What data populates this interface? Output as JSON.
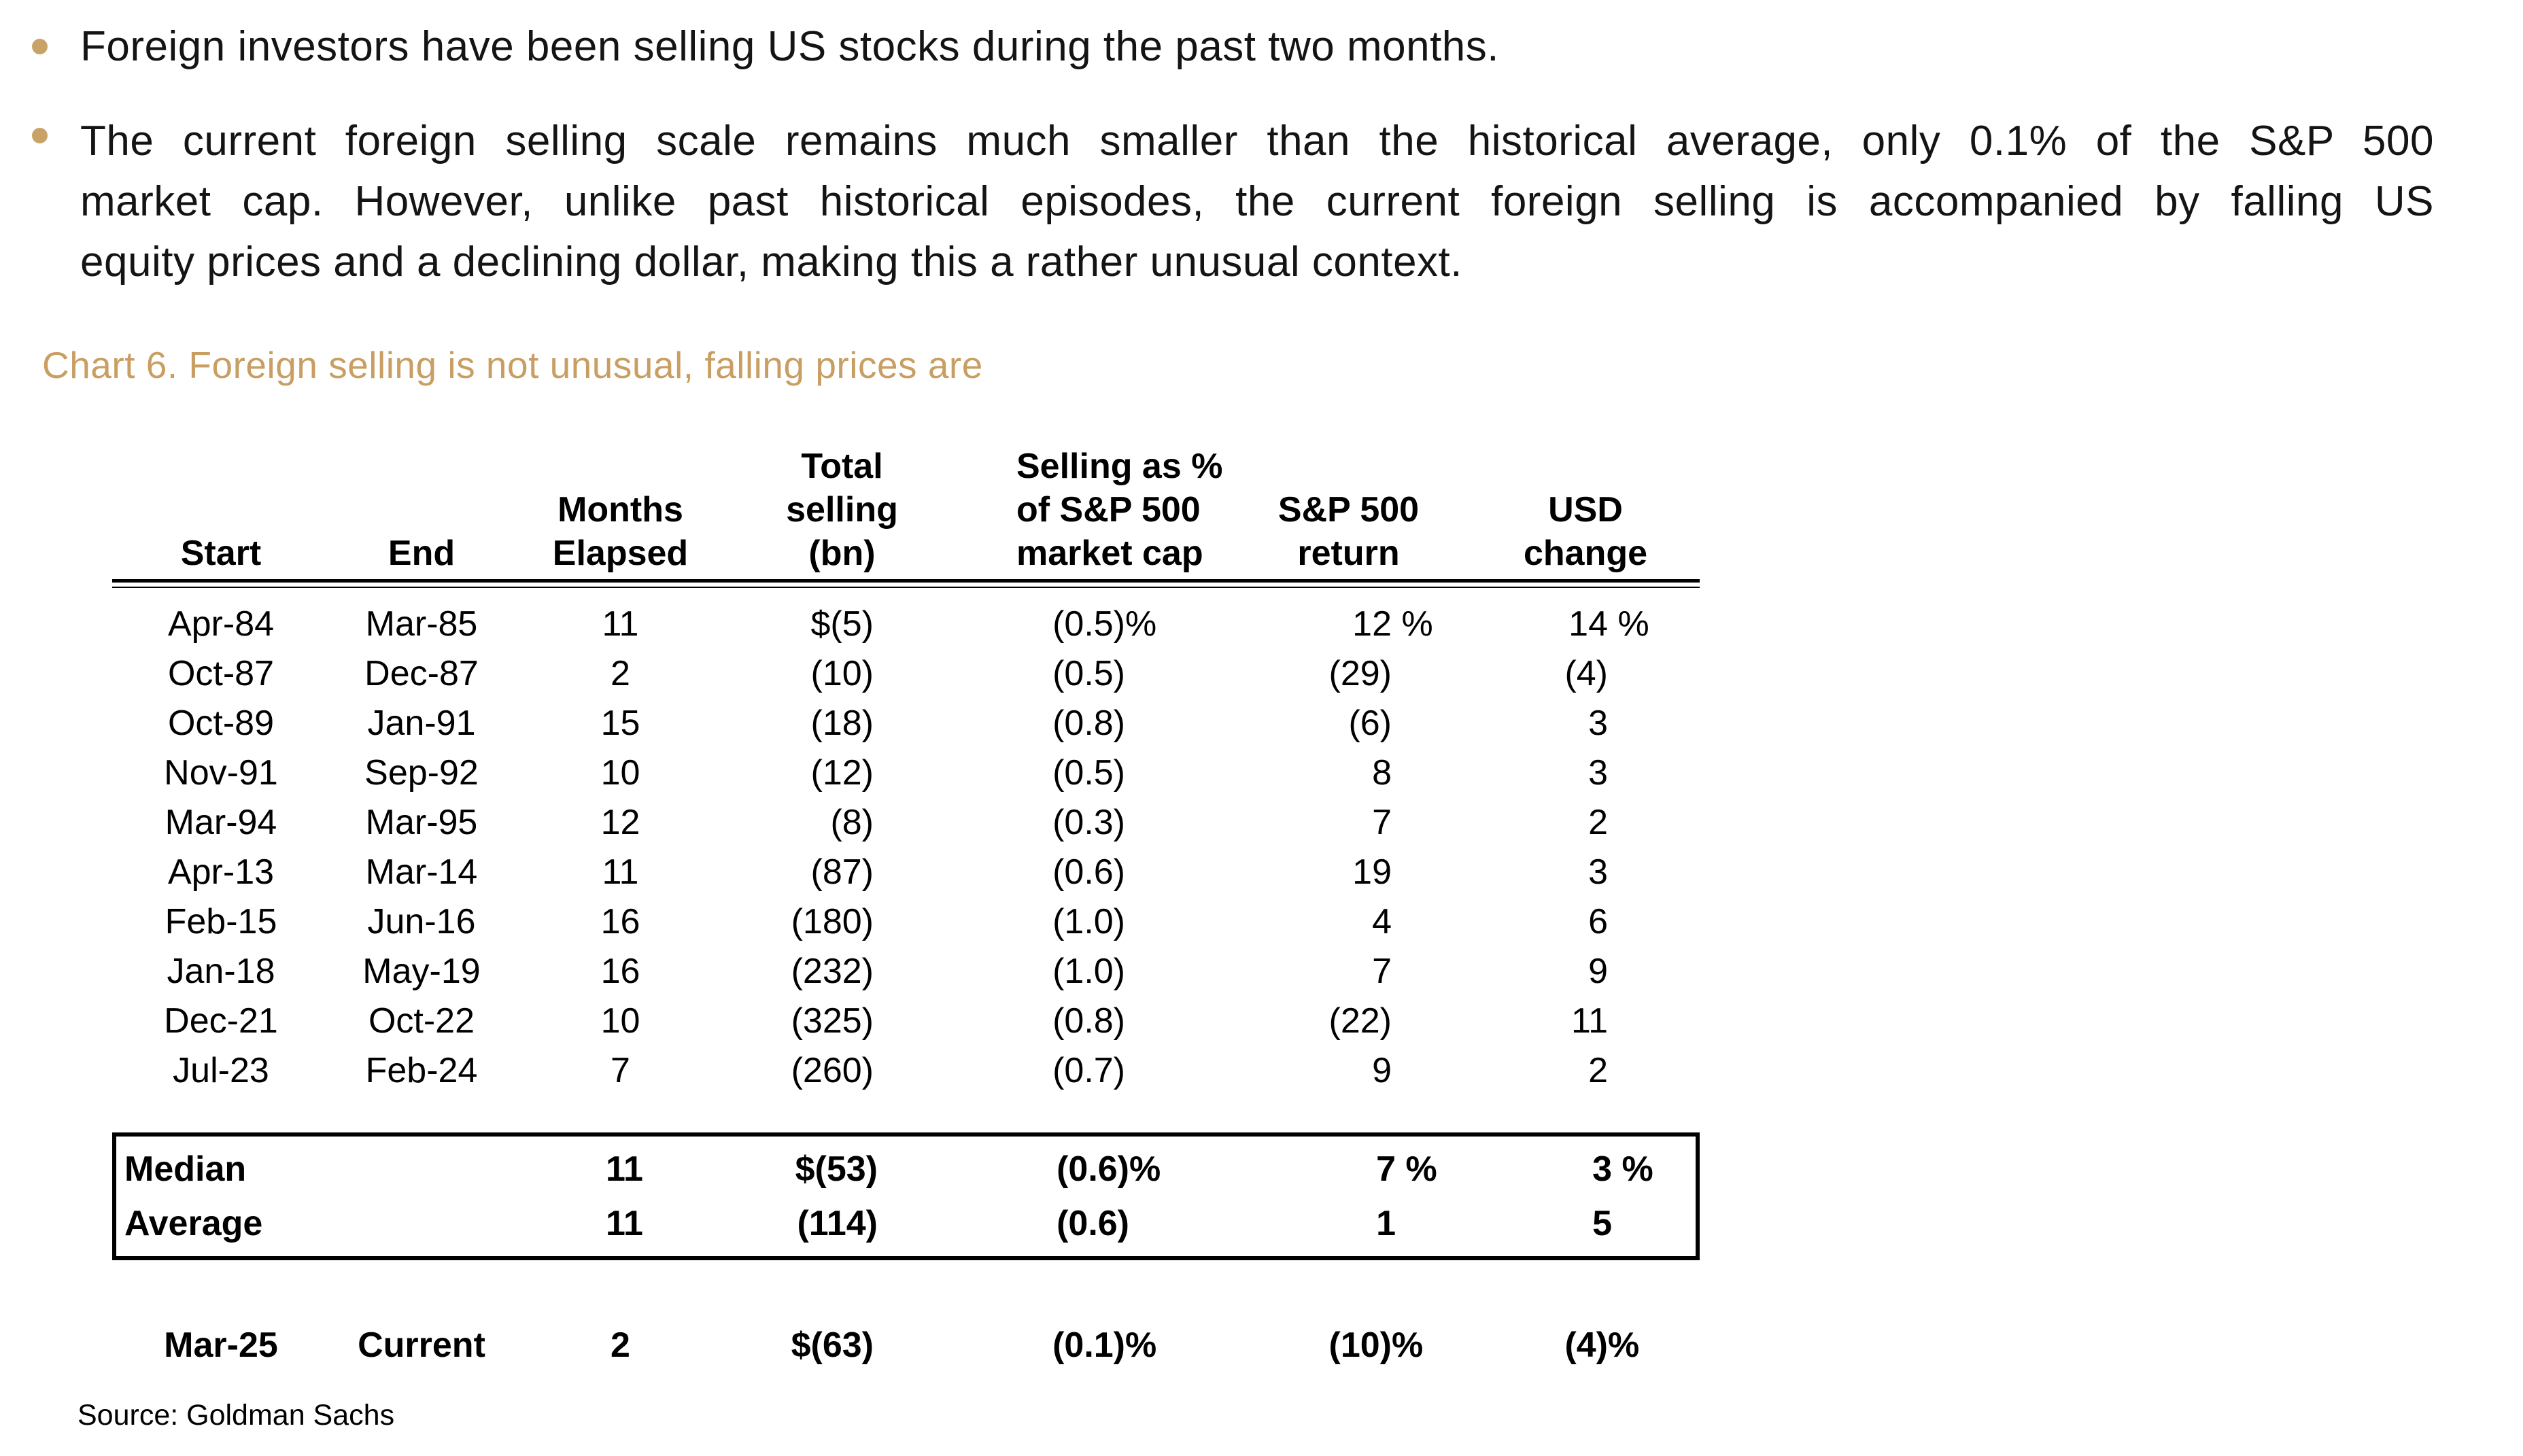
{
  "colors": {
    "accent_gold": "#C89E62",
    "bullet_gold": "#C9A268",
    "text": "#141414"
  },
  "bullets": {
    "first": "Foreign investors have been selling US stocks during the past two months.",
    "second_lines": [
      "The current foreign selling scale remains much smaller than the historical average, only 0.1% of the S&P 500",
      "market cap. However, unlike past historical episodes, the current foreign selling is accompanied by falling US",
      "equity prices and a declining dollar, making this a rather unusual context."
    ]
  },
  "chart_title": "Chart 6. Foreign selling is not unusual, falling prices are",
  "table": {
    "headers": {
      "start": [
        "Start"
      ],
      "end": [
        "End"
      ],
      "months": [
        "Months",
        "Elapsed"
      ],
      "selling": [
        "Total",
        "selling",
        "(bn)"
      ],
      "pct": [
        "Selling as %",
        "of S&P 500",
        "market cap"
      ],
      "ret": [
        "S&P 500",
        "return"
      ],
      "usd": [
        "USD",
        "change"
      ]
    },
    "rows": [
      {
        "start": "Apr-84",
        "end": "Mar-85",
        "months": "11",
        "selling": "$(5)",
        "pct": "(0.5)",
        "pct_sfx": "%",
        "ret": "12",
        "ret_sfx": " %",
        "usd": "14",
        "usd_sfx": " %"
      },
      {
        "start": "Oct-87",
        "end": "Dec-87",
        "months": "2",
        "selling": "(10)",
        "pct": "(0.5)",
        "ret": "(29)",
        "usd": "(4)"
      },
      {
        "start": "Oct-89",
        "end": "Jan-91",
        "months": "15",
        "selling": "(18)",
        "pct": "(0.8)",
        "ret": "(6)",
        "usd": "3"
      },
      {
        "start": "Nov-91",
        "end": "Sep-92",
        "months": "10",
        "selling": "(12)",
        "pct": "(0.5)",
        "ret": "8",
        "usd": "3"
      },
      {
        "start": "Mar-94",
        "end": "Mar-95",
        "months": "12",
        "selling": "(8)",
        "pct": "(0.3)",
        "ret": "7",
        "usd": "2"
      },
      {
        "start": "Apr-13",
        "end": "Mar-14",
        "months": "11",
        "selling": "(87)",
        "pct": "(0.6)",
        "ret": "19",
        "usd": "3"
      },
      {
        "start": "Feb-15",
        "end": "Jun-16",
        "months": "16",
        "selling": "(180)",
        "pct": "(1.0)",
        "ret": "4",
        "usd": "6"
      },
      {
        "start": "Jan-18",
        "end": "May-19",
        "months": "16",
        "selling": "(232)",
        "pct": "(1.0)",
        "ret": "7",
        "usd": "9"
      },
      {
        "start": "Dec-21",
        "end": "Oct-22",
        "months": "10",
        "selling": "(325)",
        "pct": "(0.8)",
        "ret": "(22)",
        "usd": "11"
      },
      {
        "start": "Jul-23",
        "end": "Feb-24",
        "months": "7",
        "selling": "(260)",
        "pct": "(0.7)",
        "ret": "9",
        "usd": "2"
      }
    ],
    "summary": [
      {
        "label": "Median",
        "months": "11",
        "selling": "$(53)",
        "pct": "(0.6)",
        "pct_sfx": "%",
        "ret": "7",
        "ret_sfx": " %",
        "usd": "3",
        "usd_sfx": " %"
      },
      {
        "label": "Average",
        "months": "11",
        "selling": "(114)",
        "pct": "(0.6)",
        "ret": "1",
        "usd": "5"
      }
    ],
    "current": {
      "start": "Mar-25",
      "end": "Current",
      "months": "2",
      "selling": "$(63)",
      "pct": "(0.1)",
      "pct_sfx": "%",
      "ret": "(10)",
      "ret_sfx": "%",
      "usd": "(4)",
      "usd_sfx": "%"
    }
  },
  "source": "Source: Goldman Sachs"
}
